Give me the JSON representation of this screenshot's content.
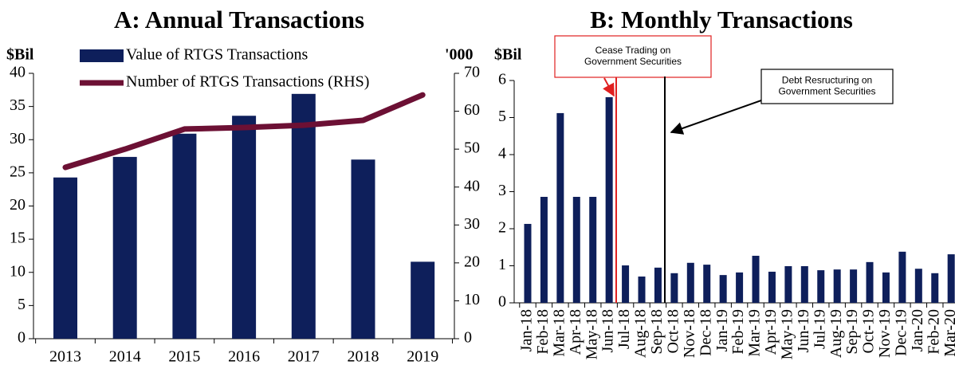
{
  "chart_data": [
    {
      "type": "bar",
      "title": "A: Annual Transactions",
      "y_unit": "$Bil",
      "y2_unit": "'000",
      "categories": [
        "2013",
        "2014",
        "2015",
        "2016",
        "2017",
        "2018",
        "2019"
      ],
      "series": [
        {
          "name": "Value of RTGS Transactions",
          "type": "bar",
          "color": "#0e1f5b",
          "values": [
            24.3,
            27.4,
            30.9,
            33.6,
            36.9,
            27.0,
            11.6
          ]
        },
        {
          "name": "Number of RTGS Transactions (RHS)",
          "type": "line",
          "axis": "y2",
          "color": "#6c1034",
          "values": [
            45.2,
            50.0,
            55.3,
            55.7,
            56.3,
            57.6,
            64.3
          ]
        }
      ],
      "ylim": [
        0,
        40
      ],
      "yticks": [
        0,
        5,
        10,
        15,
        20,
        25,
        30,
        35,
        40
      ],
      "y2lim": [
        0,
        70
      ],
      "y2ticks": [
        0,
        10,
        20,
        30,
        40,
        50,
        60,
        70
      ],
      "legend": "top-left"
    },
    {
      "type": "bar",
      "title": "B: Monthly Transactions",
      "y_unit": "$Bil",
      "categories": [
        "Jan-18",
        "Feb-18",
        "Mar-18",
        "Apr-18",
        "May-18",
        "Jun-18",
        "Jul-18",
        "Aug-18",
        "Sep-18",
        "Oct-18",
        "Nov-18",
        "Dec-18",
        "Jan-19",
        "Feb-19",
        "Mar-19",
        "Apr-19",
        "May-19",
        "Jun-19",
        "Jul-19",
        "Aug-19",
        "Sep-19",
        "Oct-19",
        "Nov-19",
        "Dec-19",
        "Jan-20",
        "Feb-20",
        "Mar-20"
      ],
      "series": [
        {
          "name": "Value of RTGS Transactions",
          "type": "bar",
          "color": "#0e1f5b",
          "values": [
            2.13,
            2.86,
            5.12,
            2.86,
            2.86,
            5.55,
            1.01,
            0.71,
            0.95,
            0.8,
            1.08,
            1.03,
            0.75,
            0.82,
            1.27,
            0.84,
            0.99,
            0.99,
            0.88,
            0.9,
            0.9,
            1.1,
            0.82,
            1.38,
            0.92,
            0.8,
            1.31
          ]
        }
      ],
      "ylim": [
        0,
        6
      ],
      "yticks": [
        0,
        1,
        2,
        3,
        4,
        5,
        6
      ],
      "annotations": [
        {
          "lines": [
            "Cease Trading on",
            "Government Securities"
          ],
          "color": "#e02020"
        },
        {
          "lines": [
            "Debt Resructuring on",
            "Government Securities"
          ],
          "color": "#000000"
        }
      ]
    }
  ]
}
